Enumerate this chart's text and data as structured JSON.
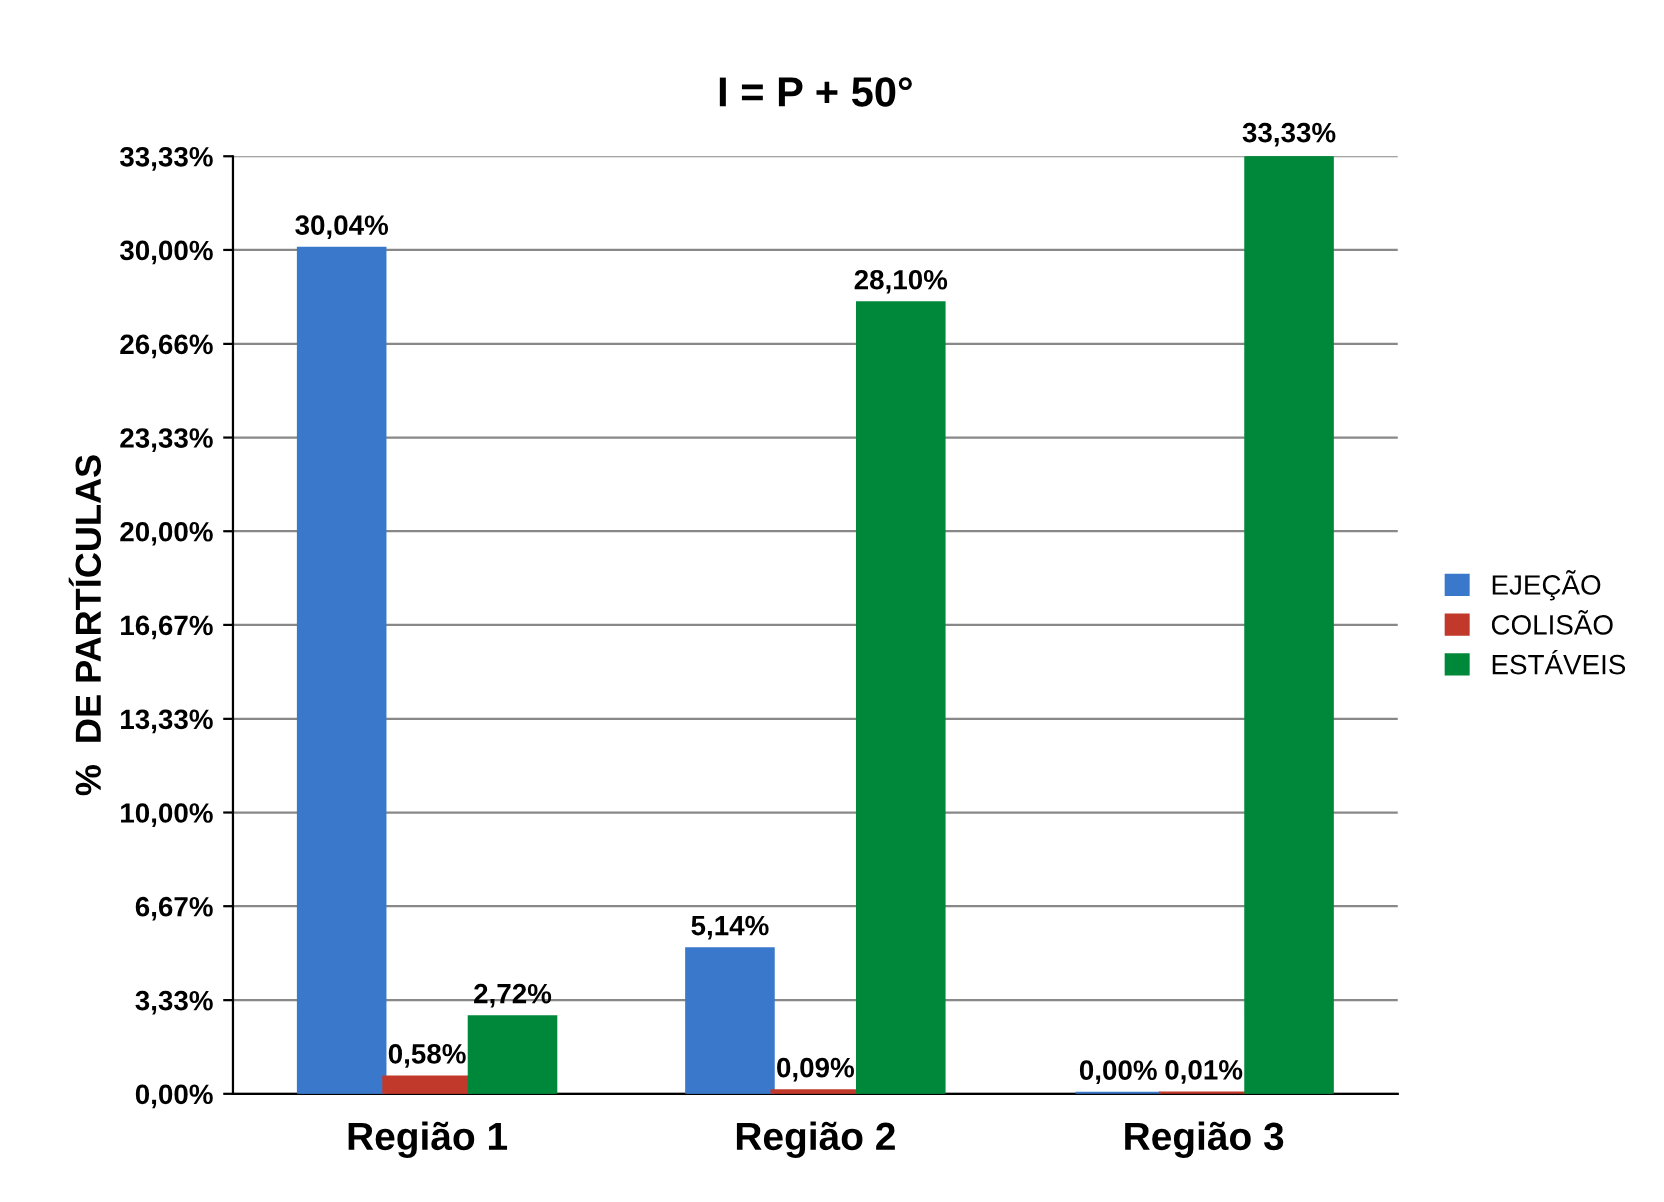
{
  "chart_data": {
    "type": "bar",
    "title": "I = P + 50°",
    "ylabel": "%  DE PARTÍCULAS",
    "categories": [
      "Região 1",
      "Região 2",
      "Região 3"
    ],
    "series": [
      {
        "name": "EJEÇÃO",
        "color": "#3a78cc",
        "values": [
          30.04,
          5.14,
          0.0
        ],
        "value_labels": [
          "30,04%",
          "5,14%",
          "0,00%"
        ]
      },
      {
        "name": "COLISÃO",
        "color": "#c0392b",
        "values": [
          0.58,
          0.09,
          0.01
        ],
        "value_labels": [
          "0,58%",
          "0,09%",
          "0,01%"
        ]
      },
      {
        "name": "ESTÁVEIS",
        "color": "#00883a",
        "values": [
          2.72,
          28.1,
          33.33
        ],
        "value_labels": [
          "2,72%",
          "28,10%",
          "33,33%"
        ]
      }
    ],
    "ylim": [
      0,
      33.33
    ],
    "yticks": [
      {
        "value": 0,
        "label": "0,00%"
      },
      {
        "value": 3.33,
        "label": "3,33%"
      },
      {
        "value": 6.67,
        "label": "6,67%"
      },
      {
        "value": 10,
        "label": "10,00%"
      },
      {
        "value": 13.33,
        "label": "13,33%"
      },
      {
        "value": 16.67,
        "label": "16,67%"
      },
      {
        "value": 20,
        "label": "20,00%"
      },
      {
        "value": 23.33,
        "label": "23,33%"
      },
      {
        "value": 26.66,
        "label": "26,66%"
      },
      {
        "value": 30,
        "label": "30,00%"
      },
      {
        "value": 33.33,
        "label": "33,33%"
      }
    ],
    "grid": "y",
    "legend": "right"
  }
}
